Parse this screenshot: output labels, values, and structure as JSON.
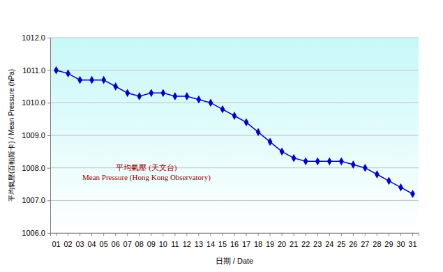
{
  "chart_data": {
    "type": "line",
    "x_label": "日期 / Date",
    "y_label": "平均氣壓(百帕斯卡) / Mean Pressure (hPa)",
    "annotations": [
      "平均氣壓 (天文台)",
      "Mean Pressure (Hong Kong Observatory)"
    ],
    "categories": [
      "01",
      "02",
      "03",
      "04",
      "05",
      "06",
      "07",
      "08",
      "09",
      "10",
      "11",
      "12",
      "13",
      "14",
      "15",
      "16",
      "17",
      "18",
      "19",
      "20",
      "21",
      "22",
      "23",
      "24",
      "25",
      "26",
      "27",
      "28",
      "29",
      "30",
      "31"
    ],
    "values": [
      1011.0,
      1010.9,
      1010.7,
      1010.7,
      1010.7,
      1010.5,
      1010.3,
      1010.2,
      1010.3,
      1010.3,
      1010.2,
      1010.2,
      1010.1,
      1010.0,
      1009.8,
      1009.6,
      1009.4,
      1009.1,
      1008.8,
      1008.5,
      1008.3,
      1008.2,
      1008.2,
      1008.2,
      1008.2,
      1008.1,
      1008.0,
      1007.8,
      1007.6,
      1007.4,
      1007.2
    ],
    "color": "#0000cc",
    "marker": "diamond",
    "ylim": [
      1006,
      1012
    ],
    "yticks": [
      {
        "value": 1006,
        "label": "1006.0"
      },
      {
        "value": 1007,
        "label": "1007.0"
      },
      {
        "value": 1008,
        "label": "1008.0"
      },
      {
        "value": 1009,
        "label": "1009.0"
      },
      {
        "value": 1010,
        "label": "1010.0"
      },
      {
        "value": 1011,
        "label": "1011.0"
      },
      {
        "value": 1012,
        "label": "1012.0"
      }
    ],
    "grid": true
  }
}
